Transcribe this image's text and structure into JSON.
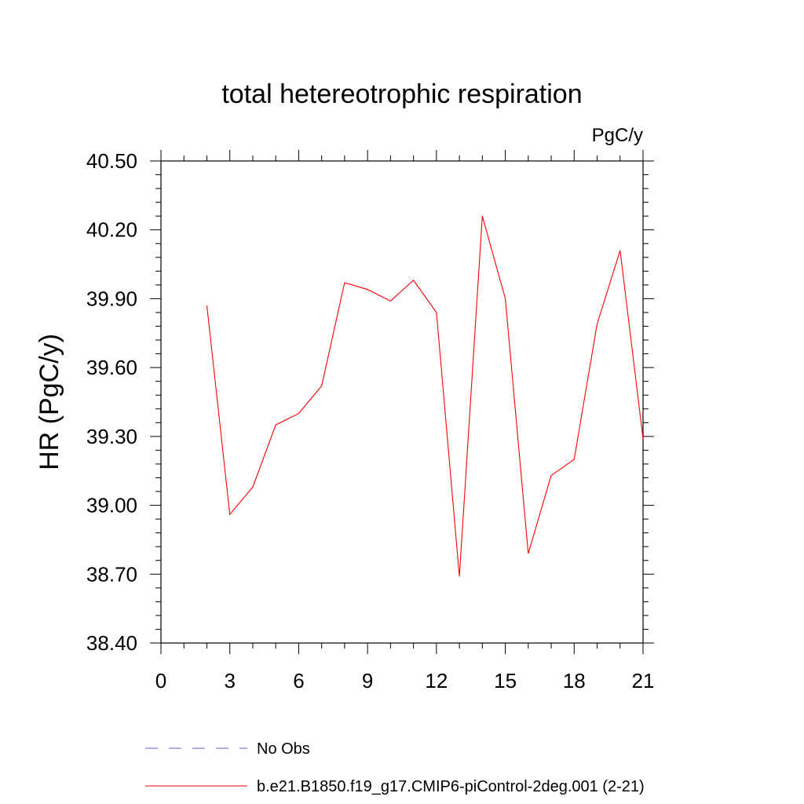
{
  "chart_data": {
    "type": "line",
    "title": "total hetereotrophic respiration",
    "units_label": "PgC/y",
    "ylabel": "HR  (PgC/y)",
    "xlabel": "",
    "xlim": [
      0,
      21
    ],
    "ylim": [
      38.4,
      40.5
    ],
    "xticks": [
      0,
      3,
      6,
      9,
      12,
      15,
      18,
      21
    ],
    "xtick_labels": [
      "0",
      "3",
      "6",
      "9",
      "12",
      "15",
      "18",
      "21"
    ],
    "yticks": [
      38.4,
      38.7,
      39.0,
      39.3,
      39.6,
      39.9,
      40.2,
      40.5
    ],
    "ytick_labels": [
      "38.40",
      "38.70",
      "39.00",
      "39.30",
      "39.60",
      "39.90",
      "40.20",
      "40.50"
    ],
    "grid": false,
    "legend_position": "bottom",
    "series": [
      {
        "name": "b.e21.B1850.f19_g17.CMIP6-piControl-2deg.001 (2-21)",
        "color": "#ff0000",
        "style": "solid",
        "x": [
          2,
          3,
          4,
          5,
          6,
          7,
          8,
          9,
          10,
          11,
          12,
          13,
          14,
          15,
          16,
          17,
          18,
          19,
          20,
          21
        ],
        "y": [
          39.87,
          38.96,
          39.08,
          39.35,
          39.4,
          39.52,
          39.97,
          39.94,
          39.89,
          39.98,
          39.84,
          38.69,
          40.26,
          39.9,
          38.79,
          39.13,
          39.2,
          39.79,
          40.11,
          39.29
        ]
      }
    ],
    "legend": [
      {
        "label": "No Obs",
        "color": "#6a5acd",
        "style": "dashed"
      },
      {
        "label": "b.e21.B1850.f19_g17.CMIP6-piControl-2deg.001 (2-21)",
        "color": "#ff0000",
        "style": "solid"
      }
    ]
  }
}
